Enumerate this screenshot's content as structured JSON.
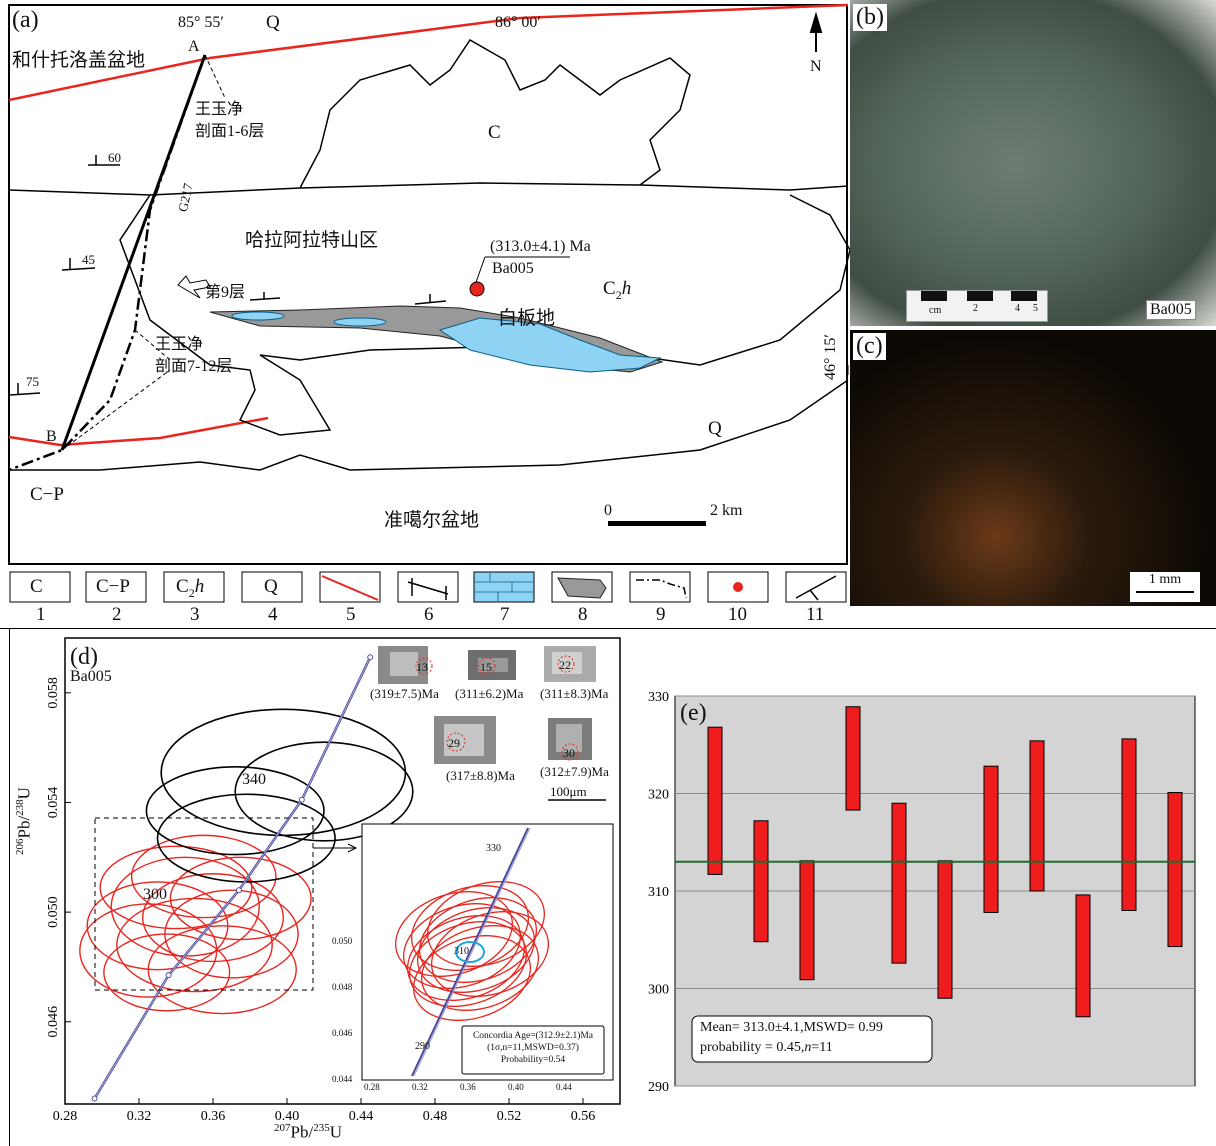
{
  "panel_a": {
    "label": "(a)",
    "coord_top_left": "85° 55′",
    "coord_top_right": "86° 00′",
    "coord_side": "46° 15′",
    "north": "N",
    "basin_top": "和什托洛盖盆地",
    "basin_bottom": "准噶尔盆地",
    "mountain": "哈拉阿拉特山区",
    "place": "白板地",
    "profile_1": [
      "王玉净",
      "剖面1-6层"
    ],
    "profile_2": [
      "王玉净",
      "剖面7-12层"
    ],
    "layer9": "第9层",
    "road": "G217",
    "point_a": "A",
    "point_b": "B",
    "unit_q_top": "Q",
    "unit_c": "C",
    "unit_c2h": "C",
    "unit_c2h_sub": "2",
    "unit_c2h_h": "h",
    "unit_q_right": "Q",
    "unit_cp": "C−P",
    "dip_60": "60",
    "dip_45": "45",
    "dip_75": "75",
    "age_label": "(313.0±4.1) Ma",
    "sample": "Ba005",
    "scale_zero": "0",
    "scale_end": "2 km"
  },
  "panel_b": {
    "label": "(b)",
    "sample": "Ba005",
    "ruler_unit": "cm",
    "ruler_ticks": [
      "2",
      "4",
      "5"
    ]
  },
  "panel_c": {
    "label": "(c)",
    "scale": "1 mm"
  },
  "legend": {
    "items": [
      {
        "symbol": "C",
        "num": "1"
      },
      {
        "symbol": "C−P",
        "num": "2"
      },
      {
        "symbol": "C2h",
        "sym_main": "C",
        "sym_sub": "2",
        "sym_it": "h",
        "num": "3"
      },
      {
        "symbol": "Q",
        "num": "4"
      },
      {
        "symbol": "",
        "num": "5"
      },
      {
        "symbol": "",
        "num": "6"
      },
      {
        "symbol": "",
        "num": "7"
      },
      {
        "symbol": "",
        "num": "8"
      },
      {
        "symbol": "",
        "num": "9"
      },
      {
        "symbol": "",
        "num": "10"
      },
      {
        "symbol": "",
        "num": "11"
      }
    ]
  },
  "panel_d": {
    "label": "(d)",
    "sample": "Ba005",
    "ylabel_pre": "206",
    "ylabel_a": "Pb/",
    "ylabel_sup2": "238",
    "ylabel_b": "U",
    "xlabel_pre": "207",
    "xlabel_a": "Pb/",
    "xlabel_sup2": "235",
    "xlabel_b": "U",
    "concordia_labels": [
      "340",
      "300"
    ],
    "zircons": [
      {
        "spot": "13",
        "age": "(319±7.5)Ma"
      },
      {
        "spot": "15",
        "age": "(311±6.2)Ma"
      },
      {
        "spot": "22",
        "age": "(311±8.3)Ma"
      },
      {
        "spot": "29",
        "age": "(317±8.8)Ma"
      },
      {
        "spot": "30",
        "age": "(312±7.9)Ma"
      }
    ],
    "zircon_scale": "100μm",
    "inset": {
      "concordia_labels": [
        "330",
        "310",
        "290"
      ],
      "ylabels": [
        "0.050",
        "0.048",
        "0.046",
        "0.044"
      ],
      "xlabels": [
        "0.28",
        "0.32",
        "0.36",
        "0.40",
        "0.44"
      ],
      "box_line1": "Concordia Age=(312.9±2.1)Ma",
      "box_line2": "(1σ,n=11,MSWD=0.37)",
      "box_line3": "Probability=0.54"
    }
  },
  "chart_data": [
    {
      "type": "scatter",
      "title": "(d)",
      "xlabel": "207Pb/235U",
      "ylabel": "206Pb/238U",
      "xticks": [
        "0.28",
        "0.32",
        "0.36",
        "0.40",
        "0.44",
        "0.48",
        "0.52",
        "0.56"
      ],
      "yticks": [
        "0.046",
        "0.050",
        "0.054",
        "0.058"
      ],
      "xlim": [
        0.28,
        0.58
      ],
      "ylim": [
        0.043,
        0.06
      ],
      "concordia": [
        {
          "x": 0.296,
          "y": 0.0432
        },
        {
          "x": 0.336,
          "y": 0.0477
        },
        {
          "x": 0.374,
          "y": 0.0508
        },
        {
          "x": 0.408,
          "y": 0.0541
        },
        {
          "x": 0.445,
          "y": 0.0593
        }
      ],
      "ellipses_red": [
        {
          "x": 0.33,
          "y": 0.0495,
          "rx": 0.038,
          "ry": 0.0016
        },
        {
          "x": 0.345,
          "y": 0.0502,
          "rx": 0.04,
          "ry": 0.0018
        },
        {
          "x": 0.35,
          "y": 0.0488,
          "rx": 0.042,
          "ry": 0.0017
        },
        {
          "x": 0.36,
          "y": 0.0498,
          "rx": 0.038,
          "ry": 0.0016
        },
        {
          "x": 0.34,
          "y": 0.0509,
          "rx": 0.041,
          "ry": 0.0015
        },
        {
          "x": 0.37,
          "y": 0.0492,
          "rx": 0.036,
          "ry": 0.0016
        },
        {
          "x": 0.325,
          "y": 0.0486,
          "rx": 0.037,
          "ry": 0.0017
        },
        {
          "x": 0.355,
          "y": 0.0513,
          "rx": 0.039,
          "ry": 0.0015
        },
        {
          "x": 0.365,
          "y": 0.0479,
          "rx": 0.04,
          "ry": 0.0016
        },
        {
          "x": 0.335,
          "y": 0.0478,
          "rx": 0.034,
          "ry": 0.0014
        },
        {
          "x": 0.375,
          "y": 0.0505,
          "rx": 0.038,
          "ry": 0.0015
        }
      ],
      "ellipses_black": [
        {
          "x": 0.398,
          "y": 0.0551,
          "rx": 0.066,
          "ry": 0.0023
        },
        {
          "x": 0.42,
          "y": 0.0544,
          "rx": 0.048,
          "ry": 0.0018
        },
        {
          "x": 0.372,
          "y": 0.0537,
          "rx": 0.048,
          "ry": 0.0016
        },
        {
          "x": 0.378,
          "y": 0.0527,
          "rx": 0.048,
          "ry": 0.0016
        }
      ]
    },
    {
      "type": "bar",
      "title": "(e)",
      "yticks": [
        "290",
        "300",
        "310",
        "320",
        "330"
      ],
      "ylim": [
        290,
        330
      ],
      "mean": 313.0,
      "bars": [
        {
          "low": 311.7,
          "high": 326.8
        },
        {
          "low": 304.8,
          "high": 317.2
        },
        {
          "low": 300.9,
          "high": 313.1
        },
        {
          "low": 318.3,
          "high": 328.9
        },
        {
          "low": 302.6,
          "high": 319.0
        },
        {
          "low": 299.0,
          "high": 313.1
        },
        {
          "low": 307.8,
          "high": 322.8
        },
        {
          "low": 310.0,
          "high": 325.4
        },
        {
          "low": 297.1,
          "high": 309.6
        },
        {
          "low": 308.0,
          "high": 325.6
        },
        {
          "low": 304.3,
          "high": 320.1
        }
      ],
      "annotation_line1": "Mean= 313.0±4.1,MSWD= 0.99",
      "annotation_line2_a": "probability = 0.45,",
      "annotation_line2_n": "n",
      "annotation_line2_b": "=11",
      "label": "(e)"
    }
  ],
  "colors": {
    "fault": "#e8261f",
    "limestone": "#8fd3f4",
    "shale": "#999999",
    "sample": "#e8261f",
    "concordia": "#4a4a9a",
    "bar": "#ee1c1c",
    "mean": "#1f6b2f",
    "panel_e_bg": "#d4d4d4"
  }
}
